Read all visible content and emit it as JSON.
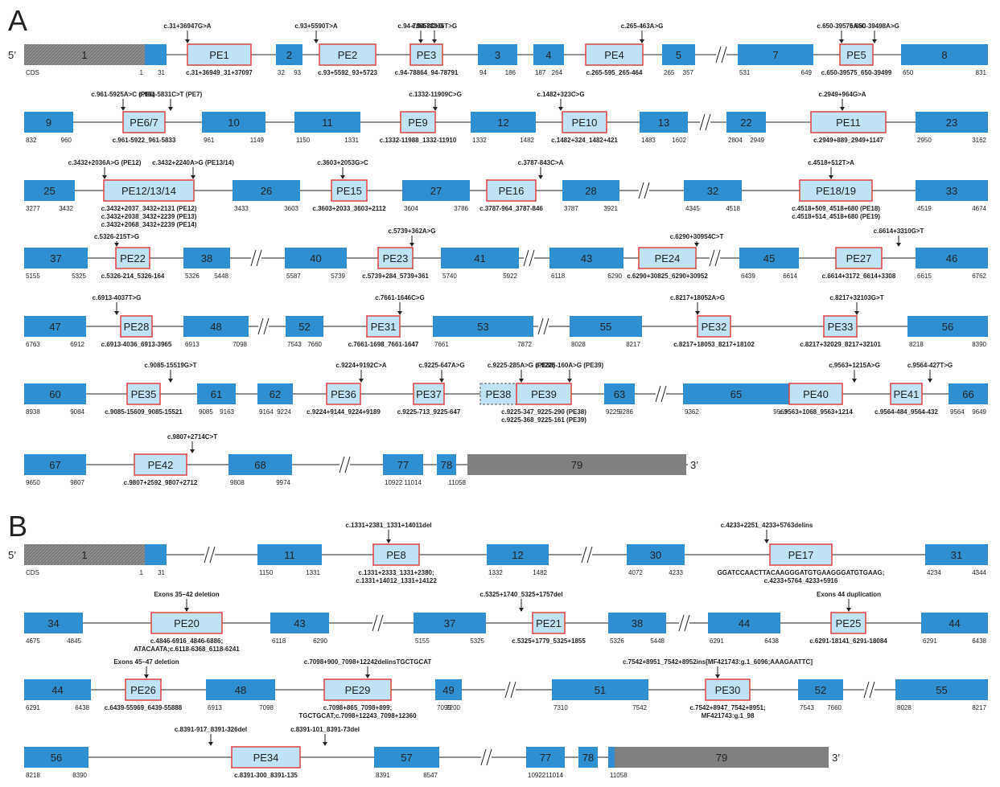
{
  "panels": {
    "A": "A",
    "B": "B"
  },
  "end5": "5’",
  "end3": "3’",
  "cds": "CDS",
  "colors": {
    "exon": "#2f8fd0",
    "pe_fill": "#bfe3f5",
    "pe_border": "#e04040",
    "utr": "#808080",
    "line": "#222222",
    "text": "#222222"
  },
  "exons": [
    {
      "row": 0,
      "label": "1",
      "utr_hatched": true,
      "l": "CDS",
      "r": "1"
    },
    {
      "row": 0,
      "label": "",
      "tail": true,
      "r": "31"
    },
    {
      "row": 0,
      "label": "PE1",
      "pe": true,
      "n": "c.31+36949_31+37097"
    },
    {
      "row": 0,
      "label": "2",
      "l": "32",
      "r": "93"
    },
    {
      "row": 0,
      "label": "PE2",
      "pe": true,
      "n": "c.93+5592_93+5723"
    },
    {
      "row": 0,
      "label": "PE3",
      "pe": true,
      "n": "c.94-78864_94-78791"
    },
    {
      "row": 0,
      "label": "3",
      "l": "94",
      "r": "186"
    },
    {
      "row": 0,
      "label": "4",
      "l": "187",
      "r": "264"
    },
    {
      "row": 0,
      "label": "PE4",
      "pe": true,
      "n": "c.265-595_265-464"
    },
    {
      "row": 0,
      "label": "5",
      "l": "265",
      "r": "357"
    },
    {
      "row": 0,
      "label": "7",
      "l": "531",
      "r": "649"
    },
    {
      "row": 0,
      "label": "PE5",
      "pe": true,
      "n": "c.650-39575_650-39499"
    },
    {
      "row": 0,
      "label": "8",
      "l": "650",
      "r": "831"
    },
    {
      "row": 1,
      "label": "9",
      "l": "832",
      "r": "960"
    },
    {
      "row": 1,
      "label": "PE6/7",
      "pe": true,
      "n": "c.961-5922_961-5833"
    },
    {
      "row": 1,
      "label": "10",
      "l": "961",
      "r": "1149"
    },
    {
      "row": 1,
      "label": "11",
      "l": "1150",
      "r": "1331"
    },
    {
      "row": 1,
      "label": "PE9",
      "pe": true,
      "n": "c.1332-11988_1332-11910"
    },
    {
      "row": 1,
      "label": "12",
      "l": "1332",
      "r": "1482"
    },
    {
      "row": 1,
      "label": "PE10",
      "pe": true,
      "n": "c.1482+324_1482+421"
    },
    {
      "row": 1,
      "label": "13",
      "l": "1483",
      "r": "1602"
    },
    {
      "row": 1,
      "label": "22",
      "l": "2804",
      "r": "2949"
    },
    {
      "row": 1,
      "label": "PE11",
      "pe": true,
      "n": "c.2949+889_2949+1147"
    },
    {
      "row": 1,
      "label": "23",
      "l": "2950",
      "r": "3162"
    },
    {
      "row": 2,
      "label": "25",
      "l": "3277",
      "r": "3432"
    },
    {
      "row": 2,
      "label": "PE12/13/14",
      "pe": true,
      "n": "c.3432+2037_3432+2131 (PE12)",
      "n2": "c.3432+2038_3432+2239 (PE13)",
      "n3": "c.3432+2068_3432+2239 (PE14)"
    },
    {
      "row": 2,
      "label": "26",
      "l": "3433",
      "r": "3603"
    },
    {
      "row": 2,
      "label": "PE15",
      "pe": true,
      "n": "c.3603+2033_3603+2112"
    },
    {
      "row": 2,
      "label": "27",
      "l": "3604",
      "r": "3786"
    },
    {
      "row": 2,
      "label": "PE16",
      "pe": true,
      "n": "c.3787-964_3787-846"
    },
    {
      "row": 2,
      "label": "28",
      "l": "3787",
      "r": "3921"
    },
    {
      "row": 2,
      "label": "32",
      "l": "4345",
      "r": "4518"
    },
    {
      "row": 2,
      "label": "PE18/19",
      "pe": true,
      "n": "c.4518+509_4518+680 (PE18)",
      "n2": "c.4518+514_4518+680 (PE19)"
    },
    {
      "row": 2,
      "label": "33",
      "l": "4519",
      "r": "4674"
    },
    {
      "row": 3,
      "label": "37",
      "l": "5155",
      "r": "5325"
    },
    {
      "row": 3,
      "label": "PE22",
      "pe": true,
      "n": "c.5326-214_5326-164"
    },
    {
      "row": 3,
      "label": "38",
      "l": "5326",
      "r": "5448"
    },
    {
      "row": 3,
      "label": "40",
      "l": "5587",
      "r": "5739"
    },
    {
      "row": 3,
      "label": "PE23",
      "pe": true,
      "n": "c.5739+284_5739+361"
    },
    {
      "row": 3,
      "label": "41",
      "l": "5740",
      "r": "5922"
    },
    {
      "row": 3,
      "label": "43",
      "l": "6118",
      "r": "6290"
    },
    {
      "row": 3,
      "label": "PE24",
      "pe": true,
      "n": "c.6290+30825_6290+30952"
    },
    {
      "row": 3,
      "label": "45",
      "l": "6439",
      "r": "6614"
    },
    {
      "row": 3,
      "label": "PE27",
      "pe": true,
      "n": "c.6614+3172_6614+3308"
    },
    {
      "row": 3,
      "label": "46",
      "l": "6615",
      "r": "6762"
    },
    {
      "row": 4,
      "label": "47",
      "l": "6763",
      "r": "6912"
    },
    {
      "row": 4,
      "label": "PE28",
      "pe": true,
      "n": "c.6913-4036_6913-3965"
    },
    {
      "row": 4,
      "label": "48",
      "l": "6913",
      "r": "7098"
    },
    {
      "row": 4,
      "label": "52",
      "l": "7543",
      "r": "7660"
    },
    {
      "row": 4,
      "label": "PE31",
      "pe": true,
      "n": "c.7661-1698_7661-1647"
    },
    {
      "row": 4,
      "label": "53",
      "l": "7661",
      "r": "7872"
    },
    {
      "row": 4,
      "label": "55",
      "l": "8028",
      "r": "8217"
    },
    {
      "row": 4,
      "label": "PE32",
      "pe": true,
      "n": "c.8217+18053_8217+18102"
    },
    {
      "row": 4,
      "label": "PE33",
      "pe": true,
      "n": "c.8217+32029_8217+32101"
    },
    {
      "row": 4,
      "label": "56",
      "l": "8218",
      "r": "8390"
    },
    {
      "row": 5,
      "label": "60",
      "l": "8938",
      "r": "9084"
    },
    {
      "row": 5,
      "label": "PE35",
      "pe": true,
      "n": "c.9085-15609_9085-15521"
    },
    {
      "row": 5,
      "label": "61",
      "l": "9085",
      "r": "9163"
    },
    {
      "row": 5,
      "label": "62",
      "l": "9164",
      "r": "9224"
    },
    {
      "row": 5,
      "label": "PE36",
      "pe": true,
      "n": "c.9224+9144_9224+9189"
    },
    {
      "row": 5,
      "label": "PE37",
      "pe": true,
      "n": "c.9225-713_9225-647"
    },
    {
      "row": 5,
      "label": "PE38",
      "pe": true,
      "dashed": true
    },
    {
      "row": 5,
      "label": "PE39",
      "pe": true,
      "n": "c.9225-347_9225-290 (PE38)",
      "n2": "c.9225-368_9225-161 (PE39)"
    },
    {
      "row": 5,
      "label": "63",
      "l": "9225",
      "r": "9286"
    },
    {
      "row": 5,
      "label": "65",
      "l": "9362",
      "r": "9563"
    },
    {
      "row": 5,
      "label": "PE40",
      "pe": true,
      "n": "c.9563+1068_9563+1214"
    },
    {
      "row": 5,
      "label": "PE41",
      "pe": true,
      "n": "c.9564-484_9564-432"
    },
    {
      "row": 5,
      "label": "66",
      "l": "9564",
      "r": "9649"
    },
    {
      "row": 6,
      "label": "67",
      "l": "9650",
      "r": "9807"
    },
    {
      "row": 6,
      "label": "PE42",
      "pe": true,
      "n": "c.9807+2592_9807+2712"
    },
    {
      "row": 6,
      "label": "68",
      "l": "9808",
      "r": "9974"
    },
    {
      "row": 6,
      "label": "77",
      "l": "10922",
      "r": "11014"
    },
    {
      "row": 6,
      "label": "78"
    },
    {
      "row": 6,
      "label": "79",
      "utr": true,
      "l": "11058"
    },
    {
      "row": 7,
      "label": "1",
      "utr_hatched": true,
      "l": "CDS",
      "r": "1"
    },
    {
      "row": 7,
      "label": "",
      "tail": true,
      "r": "31"
    },
    {
      "row": 7,
      "label": "11",
      "l": "1150",
      "r": "1331"
    },
    {
      "row": 7,
      "label": "PE8",
      "pe": true,
      "n": "c.1331+2333_1331+2380;",
      "n2": "c.1331+14012_1331+14122"
    },
    {
      "row": 7,
      "label": "12",
      "l": "1332",
      "r": "1482"
    },
    {
      "row": 7,
      "label": "30",
      "l": "4072",
      "r": "4233"
    },
    {
      "row": 7,
      "label": "PE17",
      "pe": true,
      "n": "GGATCCAACTTACAAGGGATGTGAAGGGATGTGAAG;",
      "n2": "c.4233+5764_4233+5916"
    },
    {
      "row": 7,
      "label": "31",
      "l": "4234",
      "r": "4344"
    },
    {
      "row": 8,
      "label": "34",
      "l": "4675",
      "r": "4845"
    },
    {
      "row": 8,
      "label": "PE20",
      "pe": true,
      "n": "c.4846-6916_4846-6886;",
      "n2": "ATACAATA;c.6118-6368_6118-6241"
    },
    {
      "row": 8,
      "label": "43",
      "l": "6118",
      "r": "6290"
    },
    {
      "row": 8,
      "label": "37",
      "l": "5155",
      "r": "5325"
    },
    {
      "row": 8,
      "label": "PE21",
      "pe": true,
      "n": "c.5325+1779_5325+1855"
    },
    {
      "row": 8,
      "label": "38",
      "l": "5326",
      "r": "5448"
    },
    {
      "row": 8,
      "label": "44",
      "l": "6291",
      "r": "6438"
    },
    {
      "row": 8,
      "label": "PE25",
      "pe": true,
      "n": "c.6291-18141_6291-18084"
    },
    {
      "row": 8,
      "label": "44",
      "l": "6291",
      "r": "6438"
    },
    {
      "row": 9,
      "label": "44",
      "l": "6291",
      "r": "6438"
    },
    {
      "row": 9,
      "label": "PE26",
      "pe": true,
      "n": "c.6439-55969_6439-55888"
    },
    {
      "row": 9,
      "label": "48",
      "l": "6913",
      "r": "7098"
    },
    {
      "row": 9,
      "label": "PE29",
      "pe": true,
      "n": "c.7098+865_7098+899;",
      "n2": "TGCTGCAT;c.7098+12243_7098+12360"
    },
    {
      "row": 9,
      "label": "49",
      "l": "7099",
      "r": "7200"
    },
    {
      "row": 9,
      "label": "51",
      "l": "7310",
      "r": "7542"
    },
    {
      "row": 9,
      "label": "PE30",
      "pe": true,
      "n": "c.7542+8947_7542+8951;",
      "n2": "MF421743:g.1_98"
    },
    {
      "row": 9,
      "label": "52",
      "l": "7543",
      "r": "7660"
    },
    {
      "row": 9,
      "label": "55",
      "l": "8028",
      "r": "8217"
    },
    {
      "row": 10,
      "label": "56",
      "l": "8218",
      "r": "8390"
    },
    {
      "row": 10,
      "label": "PE34",
      "pe": true,
      "n": "c.8391-300_8391-135"
    },
    {
      "row": 10,
      "label": "57",
      "l": "8391",
      "r": "8547"
    },
    {
      "row": 10,
      "label": "77",
      "l": "10922",
      "r": "11014"
    },
    {
      "row": 10,
      "label": "78"
    },
    {
      "row": 10,
      "label": "",
      "tail": true,
      "l": "11058"
    },
    {
      "row": 10,
      "label": "79",
      "utr": true
    }
  ],
  "variants": [
    {
      "row": 0,
      "text": "c.31+36947G>A"
    },
    {
      "row": 0,
      "text": "c.93+5590T>A"
    },
    {
      "row": 0,
      "text": "c.94-78858C>G"
    },
    {
      "row": 0,
      "text": "c.94-78836T>G"
    },
    {
      "row": 0,
      "text": "c.265-463A>G"
    },
    {
      "row": 0,
      "text": "c.650-39575A>C"
    },
    {
      "row": 0,
      "text": "c.650-39498A>G"
    },
    {
      "row": 1,
      "text": "c.961-5925A>C (PE6)"
    },
    {
      "row": 1,
      "text": "c.961-5831C>T (PE7)"
    },
    {
      "row": 1,
      "text": "c.1332-11909C>G"
    },
    {
      "row": 1,
      "text": "c.1482+323C>G"
    },
    {
      "row": 1,
      "text": "c.2949+964G>A"
    },
    {
      "row": 2,
      "text": "c.3432+2036A>G (PE12)"
    },
    {
      "row": 2,
      "text": "c.3432+2240A>G (PE13/14)"
    },
    {
      "row": 2,
      "text": "c.3603+2053G>C"
    },
    {
      "row": 2,
      "text": "c.3787-843C>A"
    },
    {
      "row": 2,
      "text": "c.4518+512T>A"
    },
    {
      "row": 3,
      "text": "c.5326-215T>G"
    },
    {
      "row": 3,
      "text": "c.5739+362A>G"
    },
    {
      "row": 3,
      "text": "c.6290+30954C>T"
    },
    {
      "row": 3,
      "text": "c.6614+3310G>T"
    },
    {
      "row": 4,
      "text": "c.6913-4037T>G"
    },
    {
      "row": 4,
      "text": "c.7661-1646C>G"
    },
    {
      "row": 4,
      "text": "c.8217+18052A>G"
    },
    {
      "row": 4,
      "text": "c.8217+32103G>T"
    },
    {
      "row": 5,
      "text": "c.9085-15519G>T"
    },
    {
      "row": 5,
      "text": "c.9224+9192C>A"
    },
    {
      "row": 5,
      "text": "c.9225-647A>G"
    },
    {
      "row": 5,
      "text": "c.9225-285A>G (PE38)"
    },
    {
      "row": 5,
      "text": "c.9225-160A>G (PE39)"
    },
    {
      "row": 5,
      "text": "c.9563+1215A>G"
    },
    {
      "row": 5,
      "text": "c.9564-427T>G"
    },
    {
      "row": 6,
      "text": "c.9807+2714C>T"
    },
    {
      "row": 7,
      "text": "c.1331+2381_1331+14011del"
    },
    {
      "row": 7,
      "text": "c.4233+2251_4233+5763delins"
    },
    {
      "row": 8,
      "text": "Exons 35–42 deletion"
    },
    {
      "row": 8,
      "text": "c.5325+1740_5325+1757del"
    },
    {
      "row": 8,
      "text": "Exons 44 duplication"
    },
    {
      "row": 9,
      "text": "Exons 45–47 deletion"
    },
    {
      "row": 9,
      "text": "c.7098+900_7098+12242delinsTGCTGCAT"
    },
    {
      "row": 9,
      "text": "c.7542+8951_7542+8952ins[MF421743:g.1_6096;AAAGAATTC]"
    },
    {
      "row": 10,
      "text": "c.8391-917_8391-326del"
    },
    {
      "row": 10,
      "text": "c.8391-101_8391-73del"
    }
  ]
}
